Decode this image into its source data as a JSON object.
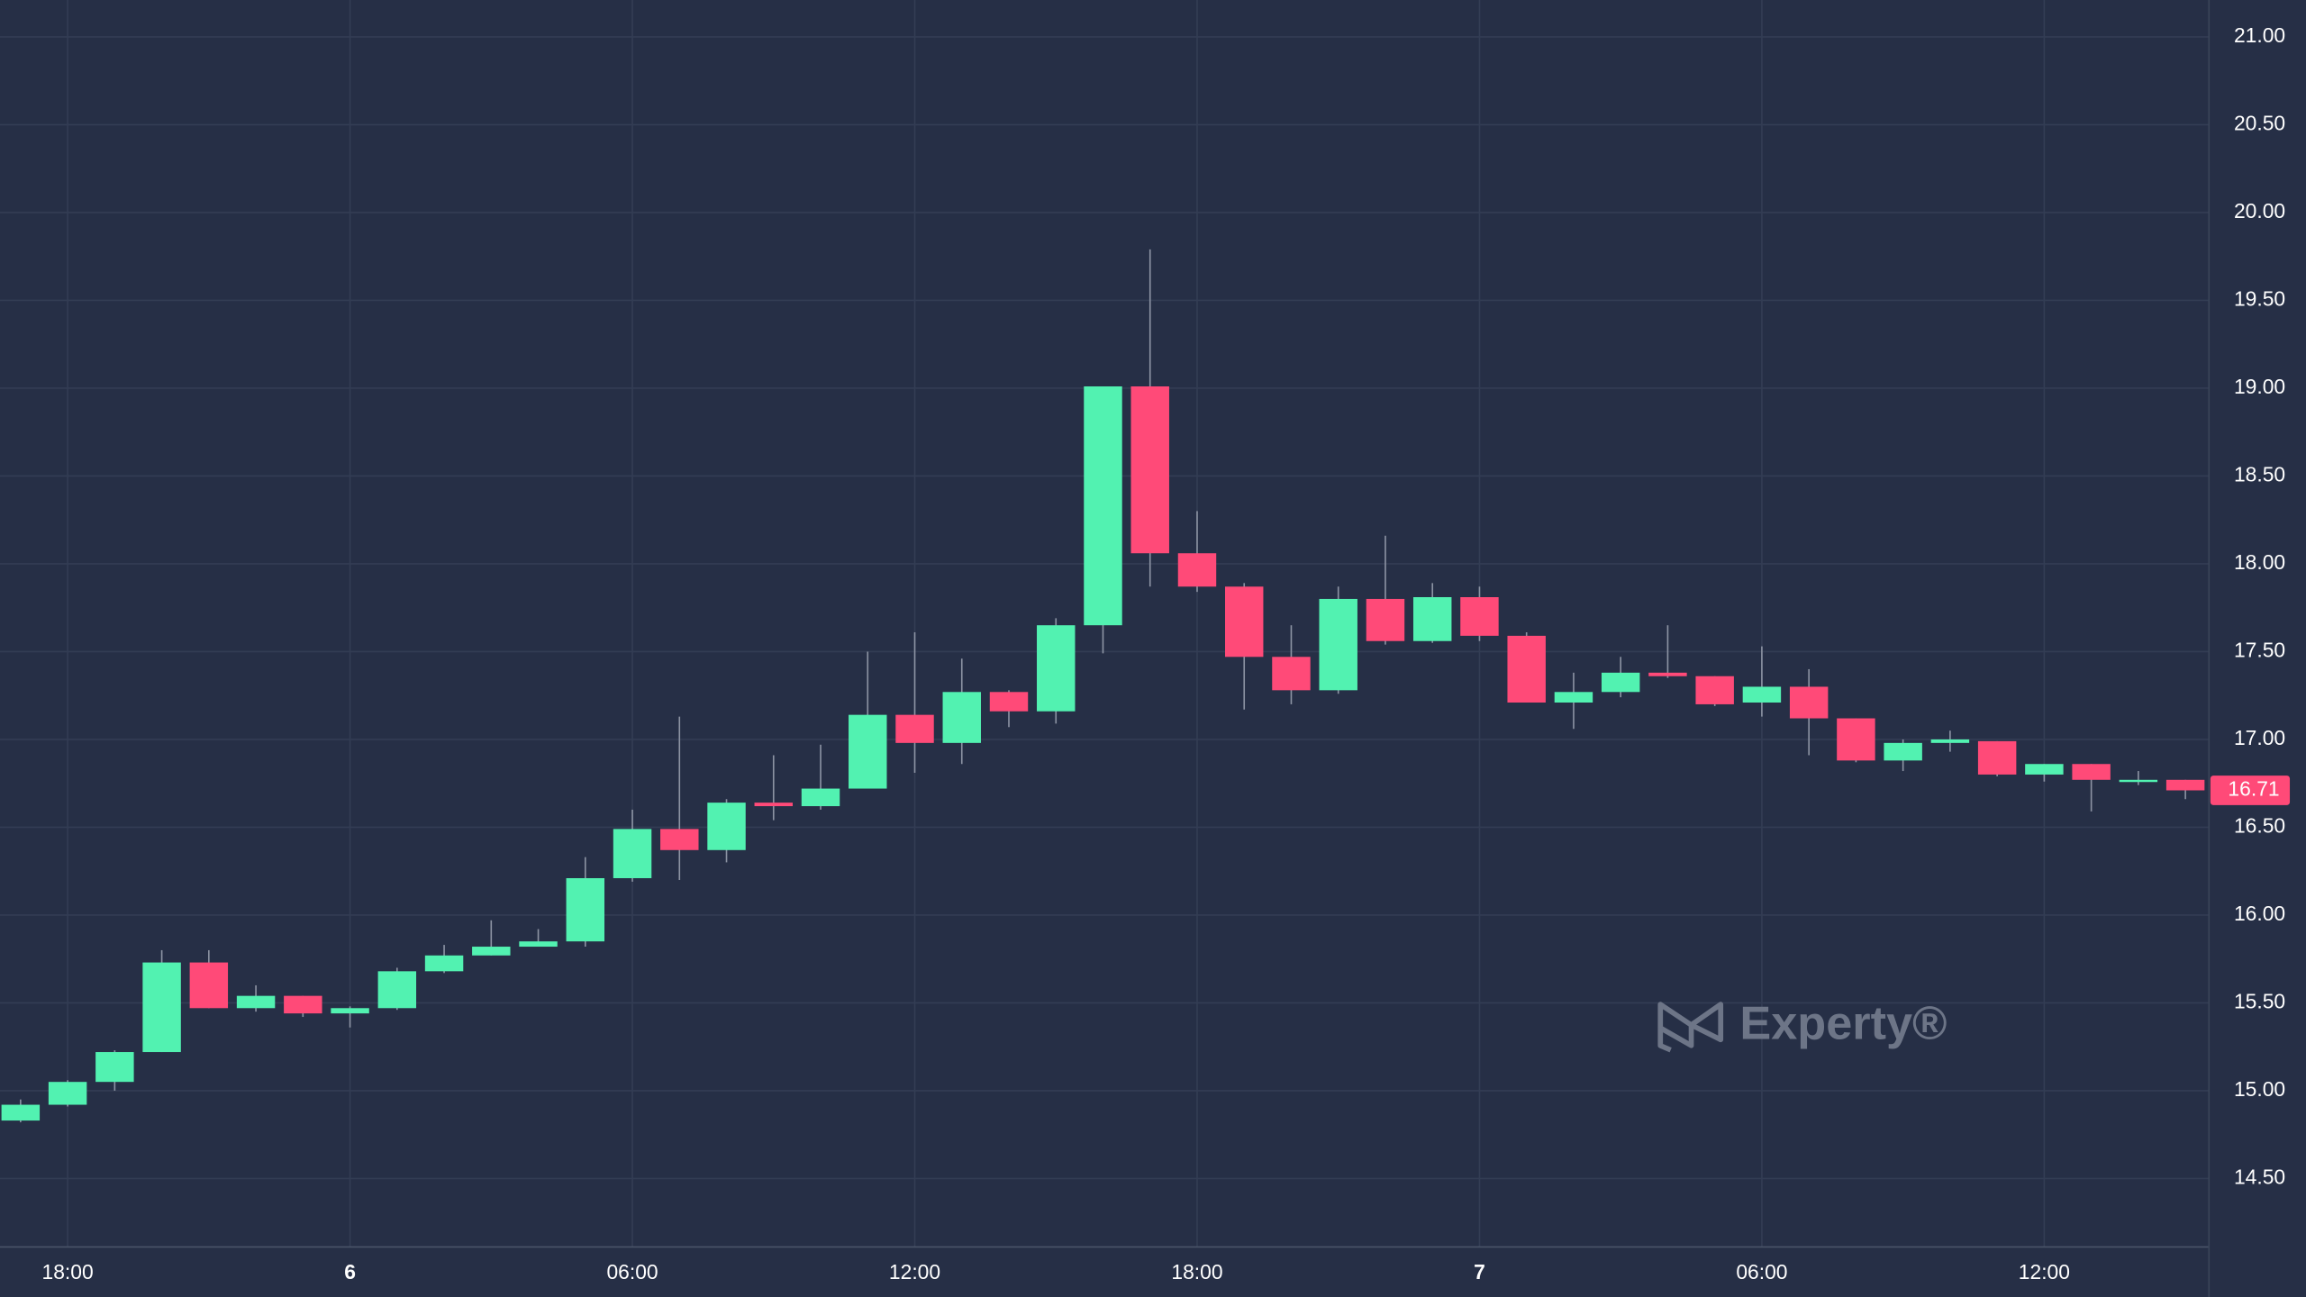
{
  "chart_data": {
    "type": "candlestick",
    "categories": [
      null,
      "18:00",
      null,
      null,
      null,
      null,
      null,
      "6",
      null,
      null,
      null,
      null,
      null,
      "06:00",
      null,
      null,
      null,
      null,
      null,
      "12:00",
      null,
      null,
      null,
      null,
      null,
      "18:00",
      null,
      null,
      null,
      null,
      null,
      "7",
      null,
      null,
      null,
      null,
      null,
      "06:00",
      null,
      null,
      null,
      null,
      null,
      "12:00",
      null,
      null,
      null
    ],
    "open": [
      14.83,
      14.92,
      15.05,
      15.22,
      15.73,
      15.47,
      15.54,
      15.44,
      15.47,
      15.68,
      15.77,
      15.82,
      15.85,
      16.21,
      16.49,
      16.37,
      16.64,
      16.62,
      16.72,
      17.14,
      16.98,
      17.27,
      17.16,
      17.65,
      19.01,
      18.06,
      17.87,
      17.47,
      17.28,
      17.8,
      17.56,
      17.81,
      17.59,
      17.21,
      17.27,
      17.38,
      17.36,
      17.21,
      17.3,
      17.12,
      16.88,
      16.98,
      16.99,
      16.8,
      16.86,
      16.76,
      16.77
    ],
    "high": [
      14.95,
      15.06,
      15.23,
      15.8,
      15.8,
      15.6,
      15.54,
      15.48,
      15.7,
      15.83,
      15.97,
      15.92,
      16.33,
      16.6,
      17.13,
      16.66,
      16.91,
      16.97,
      17.5,
      17.61,
      17.46,
      17.28,
      17.69,
      19.01,
      19.79,
      18.3,
      17.89,
      17.65,
      17.87,
      18.16,
      17.89,
      17.87,
      17.61,
      17.38,
      17.47,
      17.65,
      17.36,
      17.53,
      17.4,
      17.12,
      17.0,
      17.05,
      16.99,
      16.86,
      16.86,
      16.82,
      16.77
    ],
    "low": [
      14.82,
      14.91,
      15.0,
      15.22,
      15.47,
      15.45,
      15.42,
      15.36,
      15.46,
      15.67,
      15.77,
      15.83,
      15.82,
      16.19,
      16.2,
      16.3,
      16.54,
      16.6,
      16.72,
      16.81,
      16.86,
      17.07,
      17.09,
      17.49,
      17.87,
      17.84,
      17.17,
      17.2,
      17.26,
      17.54,
      17.55,
      17.56,
      17.21,
      17.06,
      17.24,
      17.35,
      17.19,
      17.13,
      16.91,
      16.87,
      16.82,
      16.93,
      16.79,
      16.76,
      16.59,
      16.74,
      16.66
    ],
    "close": [
      14.92,
      15.05,
      15.22,
      15.73,
      15.47,
      15.54,
      15.44,
      15.47,
      15.68,
      15.77,
      15.82,
      15.85,
      16.21,
      16.49,
      16.37,
      16.64,
      16.62,
      16.72,
      17.14,
      16.98,
      17.27,
      17.16,
      17.65,
      19.01,
      18.06,
      17.87,
      17.47,
      17.28,
      17.8,
      17.56,
      17.81,
      17.59,
      17.21,
      17.27,
      17.38,
      17.36,
      17.2,
      17.3,
      17.12,
      16.88,
      16.98,
      17.0,
      16.8,
      16.86,
      16.77,
      16.77,
      16.71
    ],
    "up_color": "#52f2b1",
    "down_color": "#ff4a78",
    "ylim": [
      14.11,
      21.21
    ],
    "yticks": [
      {
        "value": 14.5,
        "label": "14.50"
      },
      {
        "value": 15,
        "label": "15.00"
      },
      {
        "value": 15.5,
        "label": "15.50"
      },
      {
        "value": 16,
        "label": "16.00"
      },
      {
        "value": 16.5,
        "label": "16.50"
      },
      {
        "value": 17,
        "label": "17.00"
      },
      {
        "value": 17.5,
        "label": "17.50"
      },
      {
        "value": 18,
        "label": "18.00"
      },
      {
        "value": 18.5,
        "label": "18.50"
      },
      {
        "value": 19,
        "label": "19.00"
      },
      {
        "value": 19.5,
        "label": "19.50"
      },
      {
        "value": 20,
        "label": "20.00"
      },
      {
        "value": 20.5,
        "label": "20.50"
      },
      {
        "value": 21,
        "label": "21.00"
      }
    ],
    "last_price": 16.71,
    "watermark": "Experty®",
    "grid": true
  }
}
